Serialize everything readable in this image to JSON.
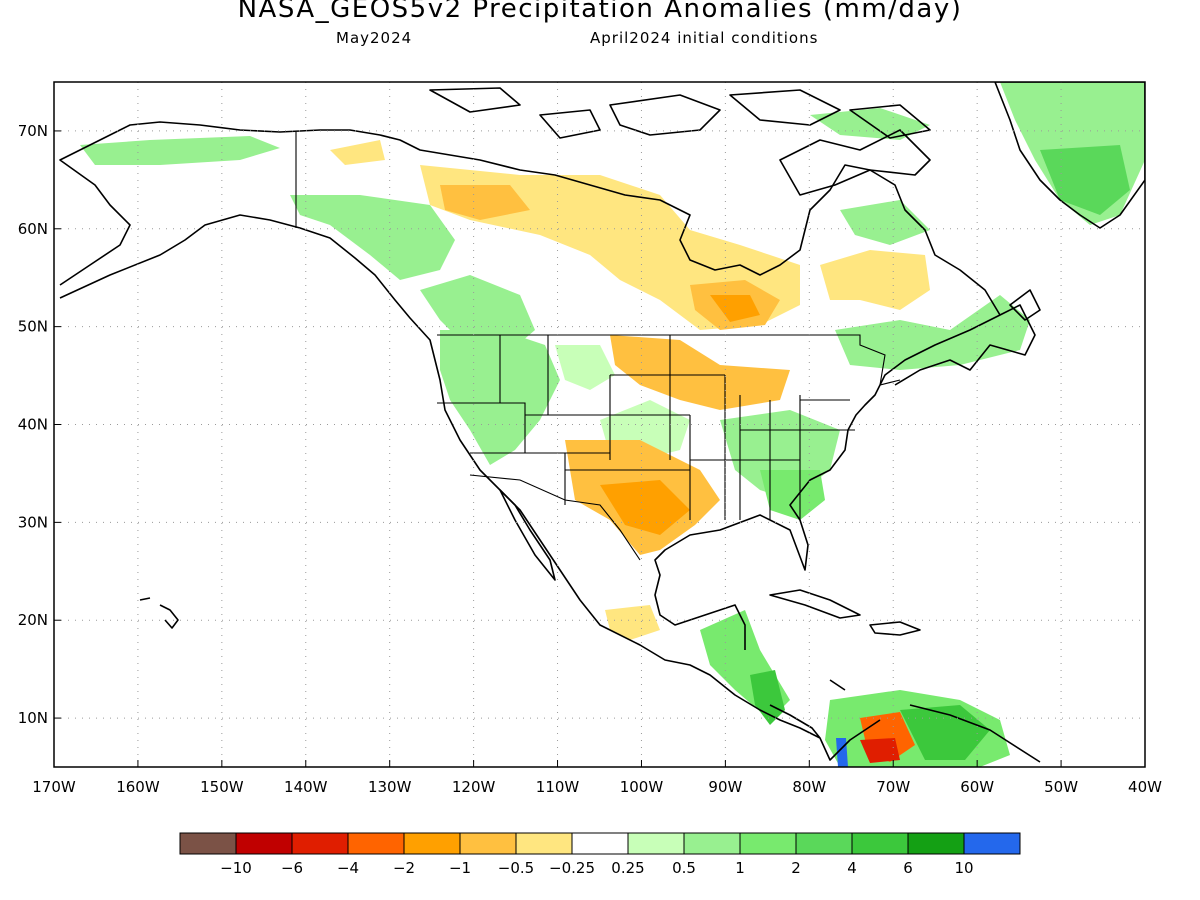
{
  "header": {
    "title": "NASA_GEOS5v2 Precipitation Anomalies (mm/day)",
    "valid_month": "May2024",
    "init_conditions": "April2024 initial conditions"
  },
  "map": {
    "lon_range": [
      -170,
      -40
    ],
    "lat_range": [
      5,
      75
    ],
    "lat_ticks": [
      {
        "value": 70,
        "label": "70N"
      },
      {
        "value": 60,
        "label": "60N"
      },
      {
        "value": 50,
        "label": "50N"
      },
      {
        "value": 40,
        "label": "40N"
      },
      {
        "value": 30,
        "label": "30N"
      },
      {
        "value": 20,
        "label": "20N"
      },
      {
        "value": 10,
        "label": "10N"
      }
    ],
    "lon_ticks": [
      {
        "value": -170,
        "label": "170W"
      },
      {
        "value": -160,
        "label": "160W"
      },
      {
        "value": -150,
        "label": "150W"
      },
      {
        "value": -140,
        "label": "140W"
      },
      {
        "value": -130,
        "label": "130W"
      },
      {
        "value": -120,
        "label": "120W"
      },
      {
        "value": -110,
        "label": "110W"
      },
      {
        "value": -100,
        "label": "100W"
      },
      {
        "value": -90,
        "label": "90W"
      },
      {
        "value": -80,
        "label": "80W"
      },
      {
        "value": -70,
        "label": "70W"
      },
      {
        "value": -60,
        "label": "60W"
      },
      {
        "value": -50,
        "label": "50W"
      },
      {
        "value": -40,
        "label": "40W"
      }
    ],
    "gridlines": "dotted"
  },
  "colorbar": {
    "colors": [
      "#7b5246",
      "#c00000",
      "#e01e00",
      "#ff6400",
      "#ffa000",
      "#ffc040",
      "#ffe680",
      "#ffffff",
      "#c8ffb8",
      "#98f090",
      "#78ea6e",
      "#5ad85a",
      "#3cc83c",
      "#14a014",
      "#2468ec"
    ],
    "labels": [
      "−10",
      "−6",
      "−4",
      "−2",
      "−1",
      "−0.5",
      "−0.25",
      "0.25",
      "0.5",
      "1",
      "2",
      "4",
      "6",
      "10"
    ]
  }
}
